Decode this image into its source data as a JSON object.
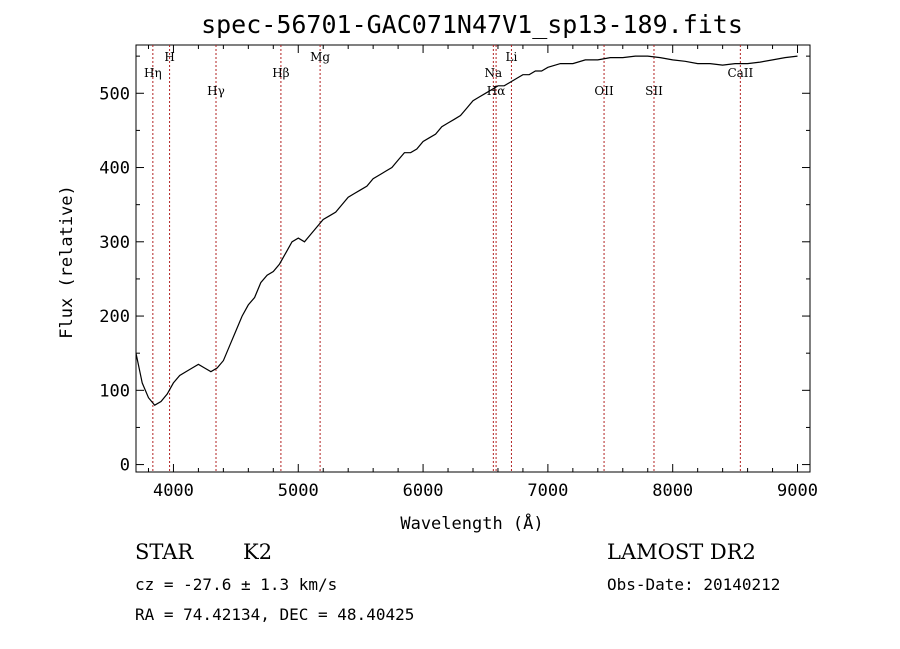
{
  "chart_data": {
    "type": "line",
    "title": "spec-56701-GAC071N47V1_sp13-189.fits",
    "xlabel": "Wavelength (Å)",
    "ylabel": "Flux (relative)",
    "xlim": [
      3700,
      9100
    ],
    "ylim": [
      -10,
      565
    ],
    "x_ticks": [
      {
        "value": 4000,
        "label": "4000"
      },
      {
        "value": 5000,
        "label": "5000"
      },
      {
        "value": 6000,
        "label": "6000"
      },
      {
        "value": 7000,
        "label": "7000"
      },
      {
        "value": 8000,
        "label": "8000"
      },
      {
        "value": 9000,
        "label": "9000"
      }
    ],
    "y_ticks": [
      {
        "value": 0,
        "label": "0"
      },
      {
        "value": 100,
        "label": "100"
      },
      {
        "value": 200,
        "label": "200"
      },
      {
        "value": 300,
        "label": "300"
      },
      {
        "value": 400,
        "label": "400"
      },
      {
        "value": 500,
        "label": "500"
      }
    ],
    "line_color": "#000000",
    "marker_color": "#b22222",
    "spectral_lines": [
      {
        "name": "Hη",
        "wavelength": 3835,
        "label_level": "low"
      },
      {
        "name": "H",
        "wavelength": 3969,
        "label_level": "high"
      },
      {
        "name": "Hγ",
        "wavelength": 4341,
        "label_level": "lower"
      },
      {
        "name": "Hβ",
        "wavelength": 4861,
        "label_level": "low"
      },
      {
        "name": "Mg",
        "wavelength": 5175,
        "label_level": "high"
      },
      {
        "name": "Na",
        "wavelength": 6563,
        "label_level": "low"
      },
      {
        "name": "Hα",
        "wavelength": 6585,
        "label_level": "lower"
      },
      {
        "name": "Li",
        "wavelength": 6708,
        "label_level": "high"
      },
      {
        "name": "OII",
        "wavelength": 7450,
        "label_level": "lower"
      },
      {
        "name": "SII",
        "wavelength": 7850,
        "label_level": "lower"
      },
      {
        "name": "CaII",
        "wavelength": 8542,
        "label_level": "low"
      }
    ],
    "series": [
      {
        "x": [
          3700,
          3750,
          3800,
          3850,
          3900,
          3950,
          4000,
          4050,
          4100,
          4150,
          4200,
          4250,
          4300,
          4350,
          4400,
          4450,
          4500,
          4550,
          4600,
          4650,
          4700,
          4750,
          4800,
          4850,
          4900,
          4950,
          5000,
          5050,
          5100,
          5150,
          5200,
          5250,
          5300,
          5350,
          5400,
          5450,
          5500,
          5550,
          5600,
          5650,
          5700,
          5750,
          5800,
          5850,
          5900,
          5950,
          6000,
          6050,
          6100,
          6150,
          6200,
          6250,
          6300,
          6350,
          6400,
          6450,
          6500,
          6550,
          6600,
          6650,
          6700,
          6750,
          6800,
          6850,
          6900,
          6950,
          7000,
          7100,
          7200,
          7300,
          7400,
          7500,
          7600,
          7700,
          7800,
          7900,
          8000,
          8100,
          8200,
          8300,
          8400,
          8500,
          8600,
          8700,
          8800,
          8900,
          9000
        ],
        "y": [
          150,
          110,
          90,
          80,
          85,
          95,
          110,
          120,
          125,
          130,
          135,
          130,
          125,
          130,
          140,
          160,
          180,
          200,
          215,
          225,
          245,
          255,
          260,
          270,
          285,
          300,
          305,
          300,
          310,
          320,
          330,
          335,
          340,
          350,
          360,
          365,
          370,
          375,
          385,
          390,
          395,
          400,
          410,
          420,
          420,
          425,
          435,
          440,
          445,
          455,
          460,
          465,
          470,
          480,
          490,
          495,
          500,
          505,
          510,
          510,
          515,
          520,
          525,
          525,
          530,
          530,
          535,
          540,
          540,
          545,
          545,
          548,
          548,
          550,
          550,
          548,
          545,
          543,
          540,
          540,
          538,
          540,
          540,
          542,
          545,
          548,
          550
        ]
      }
    ]
  },
  "info": {
    "object_class": "STAR",
    "subclass": "K2",
    "survey": "LAMOST DR2",
    "redshift": "cz = -27.6 ± 1.3 km/s",
    "obs_date": "Obs-Date: 20140212",
    "coords": "RA =  74.42134, DEC =  48.40425"
  }
}
